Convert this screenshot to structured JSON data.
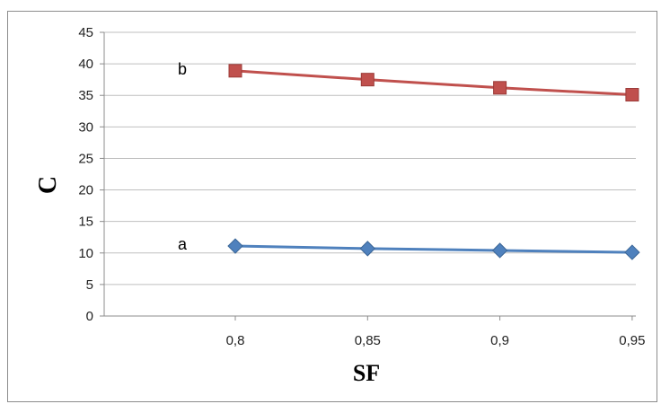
{
  "chart_data": {
    "type": "line",
    "xlabel": "SF",
    "ylabel": "C",
    "x": [
      0.8,
      0.85,
      0.9,
      0.95
    ],
    "x_tick_labels": [
      "0,8",
      "0,85",
      "0,9",
      "0,95"
    ],
    "ylim": [
      0,
      45
    ],
    "y_ticks": [
      0,
      5,
      10,
      15,
      20,
      25,
      30,
      35,
      40,
      45
    ],
    "grid": "horizontal",
    "legend": "none",
    "series": [
      {
        "name": "b",
        "values": [
          38.9,
          37.5,
          36.2,
          35.1
        ],
        "color": "#C0504D",
        "marker": "square"
      },
      {
        "name": "a",
        "values": [
          11.1,
          10.7,
          10.4,
          10.1
        ],
        "color": "#4F81BD",
        "marker": "diamond"
      }
    ]
  }
}
